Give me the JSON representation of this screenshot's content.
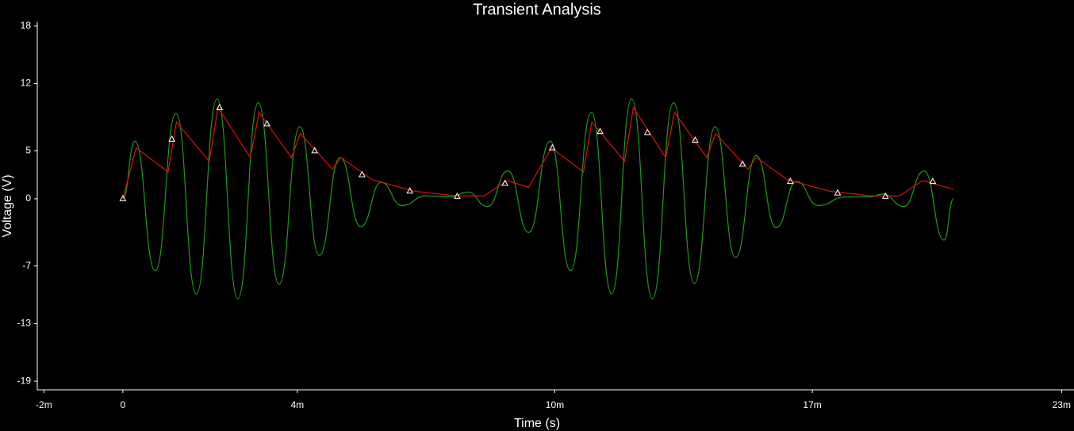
{
  "chart_data": {
    "type": "line",
    "title": "Transient Analysis",
    "x_label": "Time (s)",
    "y_label": "Voltage (V)",
    "xlim": [
      -0.00206,
      0.0229
    ],
    "xticks": [
      {
        "value": -0.0019,
        "label": "-2m"
      },
      0,
      {
        "value": 0.0042,
        "label": "4m"
      },
      {
        "value": 0.0104,
        "label": "10m"
      },
      {
        "value": 0.0166,
        "label": "17m"
      },
      {
        "value": 0.0226,
        "label": "23m"
      }
    ],
    "ylim": [
      -19.9,
      18.4
    ],
    "yticks": [
      18,
      12,
      5,
      0,
      -7,
      -13,
      -19
    ],
    "grid": false,
    "series": [
      {
        "color": "#1f9a1f",
        "smooth": true,
        "marker": "none",
        "x": [
          0,
          0.00029,
          0.00078,
          0.00128,
          0.00177,
          0.00227,
          0.00277,
          0.00326,
          0.00376,
          0.00426,
          0.00473,
          0.00523,
          0.00573,
          0.00622,
          0.00672,
          0.0073,
          0.0079,
          0.0083,
          0.00878,
          0.00927,
          0.00977,
          0.01029,
          0.01078,
          0.01128,
          0.01177,
          0.01225,
          0.01275,
          0.01326,
          0.01376,
          0.01426,
          0.01475,
          0.01525,
          0.01573,
          0.01622,
          0.01674,
          0.0174,
          0.018,
          0.0183,
          0.0188,
          0.01929,
          0.01977,
          0.02
        ],
        "values": [
          0,
          6.0,
          -7.5,
          8.9,
          -9.9,
          10.4,
          -10.4,
          10.0,
          -8.9,
          7.5,
          -5.9,
          4.3,
          -2.9,
          1.7,
          -0.7,
          0.3,
          0.2,
          0.7,
          -0.8,
          2.9,
          -3.5,
          6.0,
          -7.5,
          9.0,
          -9.9,
          10.4,
          -10.4,
          10.0,
          -8.8,
          7.5,
          -6.1,
          4.5,
          -3.0,
          1.8,
          -0.7,
          0.2,
          0.2,
          0.5,
          -0.8,
          2.9,
          -4.3,
          0
        ]
      },
      {
        "color": "#e01010",
        "smooth": false,
        "marker": "none",
        "x": [
          0,
          0.00032,
          0.00109,
          0.00129,
          0.00208,
          0.00229,
          0.00307,
          0.00328,
          0.00406,
          0.00427,
          0.00505,
          0.00525,
          0.006,
          0.007,
          0.008,
          0.0087,
          0.00925,
          0.00977,
          0.01032,
          0.01109,
          0.01129,
          0.01208,
          0.01229,
          0.01307,
          0.01328,
          0.01406,
          0.01427,
          0.01505,
          0.01525,
          0.016,
          0.017,
          0.018,
          0.0187,
          0.01925,
          0.02
        ],
        "values": [
          0,
          5.3,
          2.8,
          8.0,
          3.9,
          9.5,
          4.3,
          9.0,
          4.3,
          6.8,
          3.1,
          4.3,
          2.0,
          0.8,
          0.3,
          0.3,
          1.9,
          1.2,
          5.3,
          2.8,
          8.0,
          3.9,
          9.5,
          4.3,
          9.0,
          4.3,
          6.8,
          3.1,
          4.3,
          2.0,
          0.8,
          0.3,
          0.3,
          1.9,
          1.0
        ]
      },
      {
        "color": "#ffffff",
        "smooth": false,
        "marker": "triangle",
        "line": false,
        "x": [
          0,
          0.00118,
          0.00233,
          0.00347,
          0.00462,
          0.00576,
          0.00691,
          0.00805,
          0.0092,
          0.01034,
          0.01149,
          0.01263,
          0.01378,
          0.01492,
          0.01607,
          0.01721,
          0.01836,
          0.0195
        ],
        "values": [
          0,
          6.2,
          9.5,
          7.8,
          5.0,
          2.5,
          0.8,
          0.25,
          1.6,
          5.3,
          7.0,
          6.9,
          6.1,
          3.6,
          1.8,
          0.6,
          0.25,
          1.8
        ]
      }
    ]
  }
}
